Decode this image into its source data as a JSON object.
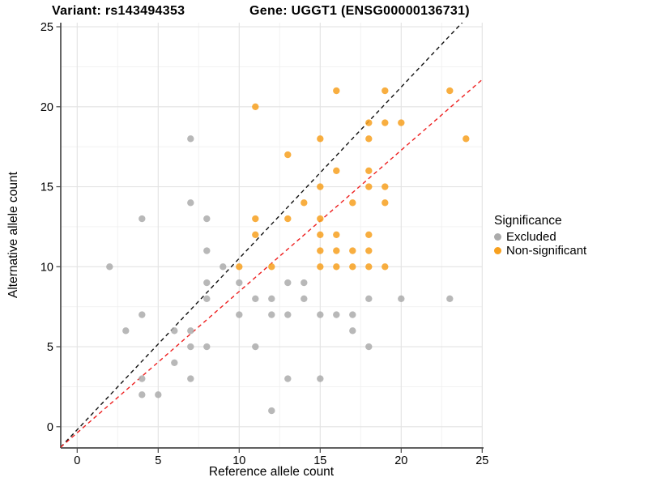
{
  "header": {
    "left_title": "Variant: rs143494353",
    "right_title": "Gene: UGGT1 (ENSG00000136731)"
  },
  "axes": {
    "x_label": "Reference allele count",
    "y_label": "Alternative allele count",
    "x_ticks": [
      0,
      5,
      10,
      15,
      20,
      25
    ],
    "y_ticks": [
      0,
      5,
      10,
      15,
      20,
      25
    ],
    "x_minor": [
      2.5,
      7.5,
      12.5,
      17.5,
      22.5
    ],
    "y_minor": [
      2.5,
      7.5,
      12.5,
      17.5,
      22.5
    ]
  },
  "legend": {
    "title": "Significance",
    "items": [
      {
        "label": "Excluded",
        "color": "#ABABAB"
      },
      {
        "label": "Non-significant",
        "color": "#F7A01E"
      }
    ]
  },
  "colors": {
    "major_grid": "#E3E3E3",
    "minor_grid": "#F0F0F0",
    "axis": "#4A4A4A",
    "identity_line": "#111111",
    "fitted_line": "#EE2020"
  },
  "chart_data": {
    "type": "scatter",
    "title": "Variant: rs143494353 — Gene: UGGT1 (ENSG00000136731)",
    "xlabel": "Reference allele count",
    "ylabel": "Alternative allele count",
    "xlim": [
      -1.0,
      25.0
    ],
    "ylim": [
      -1.3,
      25.3
    ],
    "grid": true,
    "legend_position": "right",
    "legend_title": "Significance",
    "series": [
      {
        "name": "Excluded",
        "color": "#ABABAB",
        "points": [
          [
            12,
            1
          ],
          [
            4,
            2
          ],
          [
            5,
            2
          ],
          [
            4,
            3
          ],
          [
            7,
            3
          ],
          [
            13,
            3
          ],
          [
            15,
            3
          ],
          [
            6,
            4
          ],
          [
            7,
            5
          ],
          [
            8,
            5
          ],
          [
            11,
            5
          ],
          [
            18,
            5
          ],
          [
            3,
            6
          ],
          [
            6,
            6
          ],
          [
            7,
            6
          ],
          [
            17,
            6
          ],
          [
            4,
            7
          ],
          [
            10,
            7
          ],
          [
            12,
            7
          ],
          [
            13,
            7
          ],
          [
            15,
            7
          ],
          [
            16,
            7
          ],
          [
            17,
            7
          ],
          [
            8,
            8
          ],
          [
            11,
            8
          ],
          [
            12,
            8
          ],
          [
            14,
            8
          ],
          [
            18,
            8
          ],
          [
            20,
            8
          ],
          [
            23,
            8
          ],
          [
            8,
            9
          ],
          [
            10,
            9
          ],
          [
            13,
            9
          ],
          [
            14,
            9
          ],
          [
            2,
            10
          ],
          [
            9,
            10
          ],
          [
            8,
            11
          ],
          [
            4,
            13
          ],
          [
            8,
            13
          ],
          [
            7,
            14
          ],
          [
            7,
            18
          ]
        ]
      },
      {
        "name": "Non-significant",
        "color": "#F7A01E",
        "points": [
          [
            10,
            10
          ],
          [
            12,
            10
          ],
          [
            15,
            10
          ],
          [
            16,
            10
          ],
          [
            17,
            10
          ],
          [
            18,
            10
          ],
          [
            19,
            10
          ],
          [
            15,
            11
          ],
          [
            16,
            11
          ],
          [
            17,
            11
          ],
          [
            18,
            11
          ],
          [
            11,
            12
          ],
          [
            15,
            12
          ],
          [
            16,
            12
          ],
          [
            18,
            12
          ],
          [
            11,
            13
          ],
          [
            13,
            13
          ],
          [
            15,
            13
          ],
          [
            14,
            14
          ],
          [
            17,
            14
          ],
          [
            19,
            14
          ],
          [
            15,
            15
          ],
          [
            18,
            15
          ],
          [
            19,
            15
          ],
          [
            16,
            16
          ],
          [
            18,
            16
          ],
          [
            13,
            17
          ],
          [
            15,
            18
          ],
          [
            18,
            18
          ],
          [
            24,
            18
          ],
          [
            18,
            19
          ],
          [
            19,
            19
          ],
          [
            20,
            19
          ],
          [
            11,
            20
          ],
          [
            16,
            21
          ],
          [
            19,
            21
          ],
          [
            23,
            21
          ]
        ]
      }
    ],
    "reference_lines": [
      {
        "name": "identity-line",
        "color": "#111111",
        "style": "dashed",
        "x1": -1.02,
        "y1": -1.28,
        "x2": 23.8,
        "y2": 25.3
      },
      {
        "name": "fitted-line",
        "color": "#EE2020",
        "style": "dashed",
        "x1": -1.02,
        "y1": -1.28,
        "x2": 25.0,
        "y2": 21.7
      }
    ]
  }
}
